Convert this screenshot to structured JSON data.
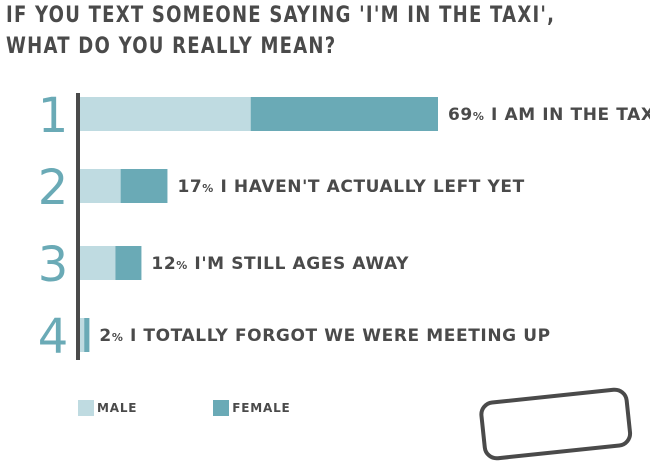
{
  "title": {
    "line1": "IF YOU TEXT SOMEONE SAYING 'I'M IN THE TAXI',",
    "line2": "WHAT DO YOU REALLY MEAN?"
  },
  "legend": {
    "male": "MALE",
    "female": "FEMALE"
  },
  "colors": {
    "male": "#bfdbe1",
    "female": "#6aaab6",
    "text": "#4a4a4a",
    "rank": "#6aaab6"
  },
  "chart_data": {
    "type": "bar",
    "orientation": "horizontal",
    "stacked": true,
    "ranks": [
      "1",
      "2",
      "3",
      "4"
    ],
    "categories": [
      "I AM IN THE TAXI!",
      "I HAVEN'T ACTUALLY LEFT YET",
      "I'M STILL AGES AWAY",
      "I TOTALLY FORGOT WE WERE MEETING UP"
    ],
    "totals": [
      69,
      17,
      12,
      2
    ],
    "totals_labels": [
      "69%",
      "17%",
      "12%",
      "2%"
    ],
    "series": [
      {
        "name": "MALE",
        "values": [
          33,
          8,
          7,
          1
        ]
      },
      {
        "name": "FEMALE",
        "values": [
          36,
          9,
          5,
          1
        ]
      }
    ],
    "xlim": [
      0,
      69
    ],
    "legend_position": "bottom-left",
    "grid": false
  }
}
